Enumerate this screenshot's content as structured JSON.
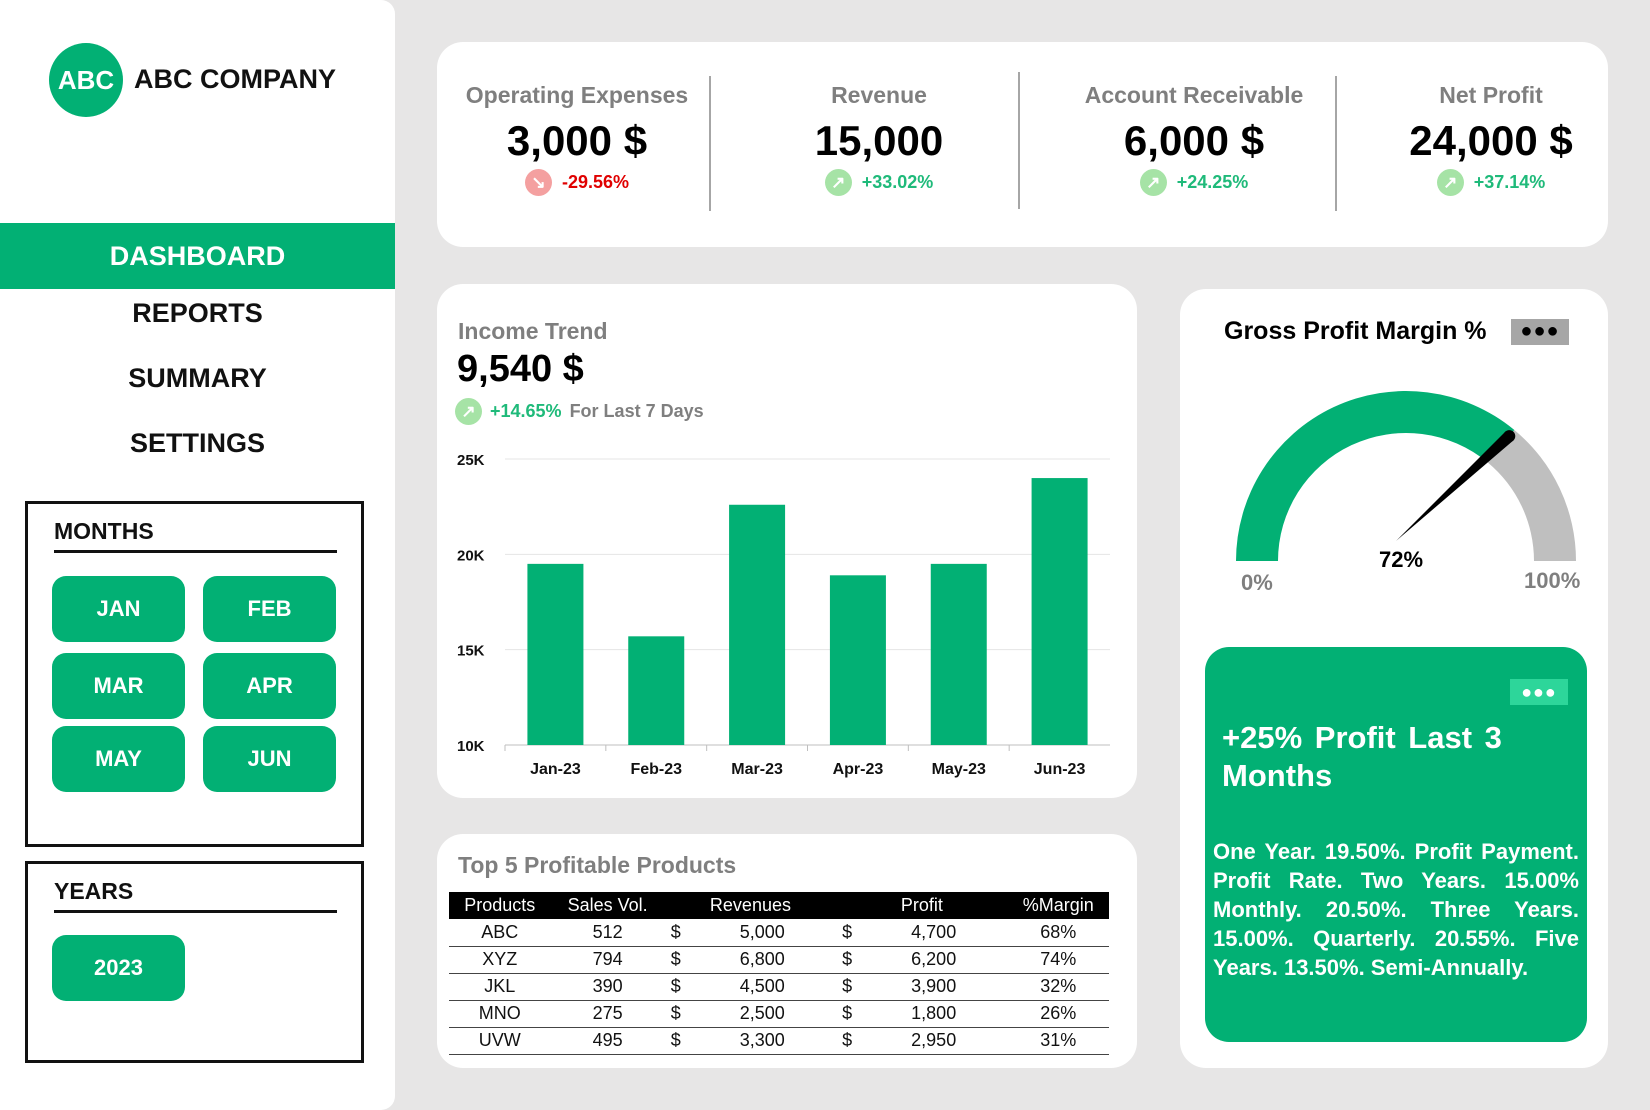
{
  "brand": {
    "logo": "ABC",
    "name": "ABC COMPANY"
  },
  "nav": [
    "DASHBOARD",
    "REPORTS",
    "SUMMARY",
    "SETTINGS"
  ],
  "months": {
    "title": "MONTHS",
    "items": [
      "JAN",
      "FEB",
      "MAR",
      "APR",
      "MAY",
      "JUN"
    ]
  },
  "years": {
    "title": "YEARS",
    "items": [
      "2023"
    ]
  },
  "kpis": [
    {
      "label": "Operating Expenses",
      "value": "3,000 $",
      "change": "-29.56%",
      "direction": "down"
    },
    {
      "label": "Revenue",
      "value": "15,000",
      "change": "+33.02%",
      "direction": "up"
    },
    {
      "label": "Account Receivable",
      "value": "6,000 $",
      "change": "+24.25%",
      "direction": "up"
    },
    {
      "label": "Net Profit",
      "value": "24,000 $",
      "change": "+37.14%",
      "direction": "up"
    }
  ],
  "colors": {
    "green": "#02b074",
    "up": "#00b050",
    "down": "#e00000",
    "gray": "#bfbfbf"
  },
  "income": {
    "title": "Income Trend",
    "value": "9,540 $",
    "change": "+14.65%",
    "period": "For Last 7 Days"
  },
  "chart_data": {
    "type": "bar",
    "categories": [
      "Jan-23",
      "Feb-23",
      "Mar-23",
      "Apr-23",
      "May-23",
      "Jun-23"
    ],
    "values": [
      19500,
      15700,
      22600,
      18900,
      19500,
      24000
    ],
    "yticks": [
      "10K",
      "15K",
      "20K",
      "25K"
    ],
    "ylim": [
      10000,
      25000
    ],
    "grid": true
  },
  "products": {
    "title": "Top 5 Profitable Products",
    "headers": [
      "Products",
      "Sales Vol.",
      "Revenues",
      "Profit",
      "%Margin"
    ],
    "rows": [
      [
        "ABC",
        "512",
        "5,000",
        "4,700",
        "68%"
      ],
      [
        "XYZ",
        "794",
        "6,800",
        "6,200",
        "74%"
      ],
      [
        "JKL",
        "390",
        "4,500",
        "3,900",
        "32%"
      ],
      [
        "MNO",
        "275",
        "2,500",
        "1,800",
        "26%"
      ],
      [
        "UVW",
        "495",
        "3,300",
        "2,950",
        "31%"
      ]
    ],
    "currency": "$"
  },
  "gauge": {
    "title": "Gross Profit Margin %",
    "value": 72,
    "value_label": "72%",
    "min_label": "0%",
    "max_label": "100%"
  },
  "promo": {
    "headline": "+25% Profit  Last 3 Months",
    "body": "One Year. 19.50%. Profit Payment. Profit Rate. Two Years. 15.00% Monthly. 20.50%. Three Years. 15.00%. Quarterly. 20.55%. Five Years. 13.50%. Semi-Annually."
  }
}
